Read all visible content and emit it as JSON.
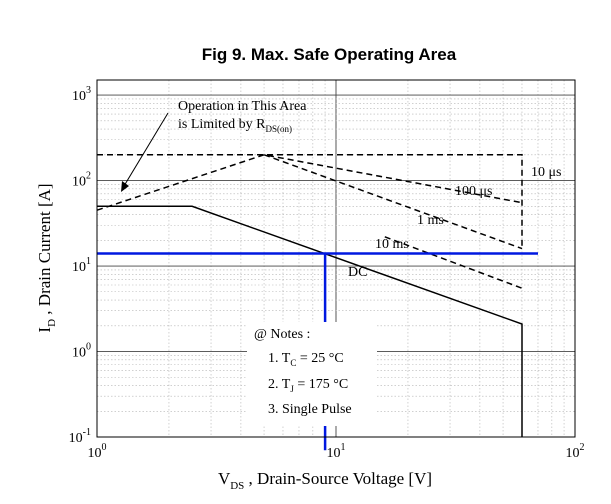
{
  "chart_data": {
    "type": "line",
    "title": "Fig 9.  Max. Safe Operating Area",
    "xlabel": {
      "main": "V",
      "sub": "DS",
      "rest": " , Drain-Source Voltage  [V]"
    },
    "ylabel": {
      "main": "I",
      "sub": "D",
      "rest": " , Drain Current  [A]"
    },
    "x_scale": "log",
    "y_scale": "log",
    "xlim": [
      1,
      100
    ],
    "ylim": [
      0.1,
      1500
    ],
    "x_ticks": [
      {
        "value": 1,
        "base": "10",
        "exp": "0"
      },
      {
        "value": 10,
        "base": "10",
        "exp": "1"
      },
      {
        "value": 100,
        "base": "10",
        "exp": "2"
      }
    ],
    "y_ticks": [
      {
        "value": 0.1,
        "base": "10",
        "exp": "-1"
      },
      {
        "value": 1,
        "base": "10",
        "exp": "0"
      },
      {
        "value": 10,
        "base": "10",
        "exp": "1"
      },
      {
        "value": 100,
        "base": "10",
        "exp": "2"
      },
      {
        "value": 1000,
        "base": "10",
        "exp": "3"
      }
    ],
    "grid": true,
    "series": [
      {
        "name": "10 μs",
        "style": "dashed",
        "color": "#000000",
        "x": [
          1,
          60,
          60
        ],
        "y": [
          200,
          200,
          16
        ]
      },
      {
        "name": "100 μs",
        "style": "dashed",
        "color": "#000000",
        "x": [
          1,
          5,
          60
        ],
        "y": [
          45,
          200,
          55
        ]
      },
      {
        "name": "1 ms",
        "style": "dashed",
        "color": "#000000",
        "x": [
          5,
          60
        ],
        "y": [
          200,
          16
        ]
      },
      {
        "name": "10 ms",
        "style": "dashed",
        "color": "#000000",
        "x": [
          16,
          60
        ],
        "y": [
          22,
          5.5
        ]
      },
      {
        "name": "DC",
        "style": "solid",
        "color": "#000000",
        "x": [
          1,
          2.5,
          60,
          60
        ],
        "y": [
          50,
          50,
          2.1,
          0.1
        ]
      },
      {
        "name": "",
        "style": "solid",
        "color": "#0018e0",
        "width": 2.5,
        "x": [
          1,
          70
        ],
        "y": [
          14,
          14
        ]
      },
      {
        "name": "",
        "style": "solid",
        "color": "#0018e0",
        "width": 2.5,
        "x": [
          9,
          9
        ],
        "y": [
          14,
          0.07
        ]
      }
    ],
    "annotations": {
      "rds_line1": "Operation in This Area",
      "rds_line2": "is Limited by R",
      "rds_sub": "DS(on)",
      "label_10us": "10 μs",
      "label_100us": "100 μs",
      "label_1ms": "1 ms",
      "label_10ms": "10 ms",
      "label_dc": "DC",
      "notes_title": "@ Notes :",
      "note1_pre": "1. T",
      "note1_sub": "C",
      "note1_post": " = 25 °C",
      "note2_pre": "2. T",
      "note2_sub": "J",
      "note2_post": " = 175 °C",
      "note3": "3. Single Pulse"
    }
  }
}
